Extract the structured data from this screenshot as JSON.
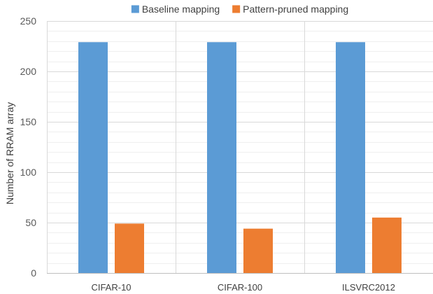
{
  "chart_data": {
    "type": "bar",
    "title": "",
    "xlabel": "",
    "ylabel": "Number of RRAM array",
    "categories": [
      "CIFAR-10",
      "CIFAR-100",
      "ILSVRC2012"
    ],
    "series": [
      {
        "name": "Baseline mapping",
        "values": [
          229,
          229,
          229
        ],
        "color": "#5B9BD5"
      },
      {
        "name": "Pattern-pruned mapping",
        "values": [
          49,
          44,
          55
        ],
        "color": "#ED7D31"
      }
    ],
    "ylim": [
      0,
      250
    ],
    "yticks": [
      0,
      50,
      100,
      150,
      200,
      250
    ],
    "grid": true,
    "legend_position": "top"
  }
}
